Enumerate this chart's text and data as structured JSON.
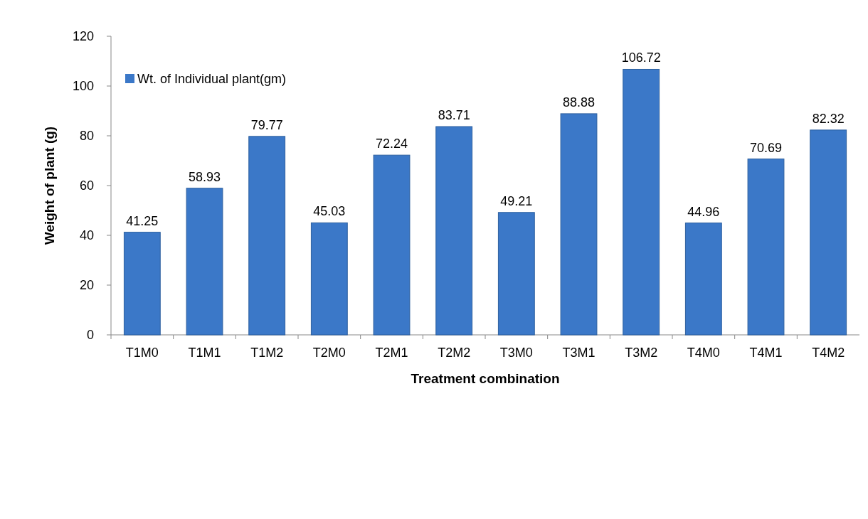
{
  "chart_data": {
    "type": "bar",
    "xlabel": "Treatment combination",
    "ylabel": "Weight of plant (g)",
    "categories": [
      "T1M0",
      "T1M1",
      "T1M2",
      "T2M0",
      "T2M1",
      "T2M2",
      "T3M0",
      "T3M1",
      "T3M2",
      "T4M0",
      "T4M1",
      "T4M2"
    ],
    "series": [
      {
        "name": "Wt. of Individual plant(gm)",
        "color": "#3b78c8",
        "values": [
          41.25,
          58.93,
          79.77,
          45.03,
          72.24,
          83.71,
          49.21,
          88.88,
          106.72,
          44.96,
          70.69,
          82.32
        ]
      }
    ],
    "ylim": [
      0,
      120
    ],
    "yticks": [
      0,
      20,
      40,
      60,
      80,
      100,
      120
    ],
    "grid": false,
    "legend": "top left",
    "data_labels": true
  }
}
